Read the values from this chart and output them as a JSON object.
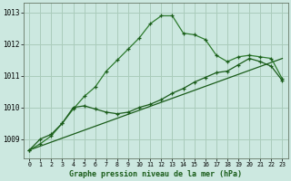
{
  "title": "Graphe pression niveau de la mer (hPa)",
  "background_color": "#cce8e0",
  "grid_color": "#aaccbb",
  "line_color_dark": "#1a5c1a",
  "line_color_med": "#2d7a2d",
  "xlim": [
    -0.5,
    23.5
  ],
  "ylim": [
    1008.4,
    1013.3
  ],
  "yticks": [
    1009,
    1010,
    1011,
    1012,
    1013
  ],
  "xticks": [
    0,
    1,
    2,
    3,
    4,
    5,
    6,
    7,
    8,
    9,
    10,
    11,
    12,
    13,
    14,
    15,
    16,
    17,
    18,
    19,
    20,
    21,
    22,
    23
  ],
  "series1_x": [
    0,
    1,
    2,
    3,
    4,
    5,
    6,
    7,
    8,
    9,
    10,
    11,
    12,
    13,
    14,
    15,
    16,
    17,
    18,
    19,
    20,
    21,
    22,
    23
  ],
  "series1_y": [
    1008.65,
    1008.85,
    1009.1,
    1009.5,
    1009.95,
    1010.35,
    1010.65,
    1011.15,
    1011.5,
    1011.85,
    1012.2,
    1012.65,
    1012.9,
    1012.9,
    1012.35,
    1012.3,
    1012.15,
    1011.65,
    1011.45,
    1011.6,
    1011.65,
    1011.6,
    1011.55,
    1010.9
  ],
  "series2_x": [
    0,
    1,
    2,
    3,
    4,
    5,
    6,
    7,
    8,
    9,
    10,
    11,
    12,
    13,
    14,
    15,
    16,
    17,
    18,
    19,
    20,
    21,
    22,
    23
  ],
  "series2_y": [
    1008.65,
    1009.0,
    1009.15,
    1009.5,
    1010.0,
    1010.05,
    1009.95,
    1009.85,
    1009.8,
    1009.85,
    1010.0,
    1010.1,
    1010.25,
    1010.45,
    1010.6,
    1010.8,
    1010.95,
    1011.1,
    1011.15,
    1011.35,
    1011.55,
    1011.45,
    1011.3,
    1010.85
  ],
  "series3_x": [
    0,
    23
  ],
  "series3_y": [
    1008.65,
    1011.55
  ],
  "figwidth": 3.2,
  "figheight": 2.0,
  "dpi": 100
}
